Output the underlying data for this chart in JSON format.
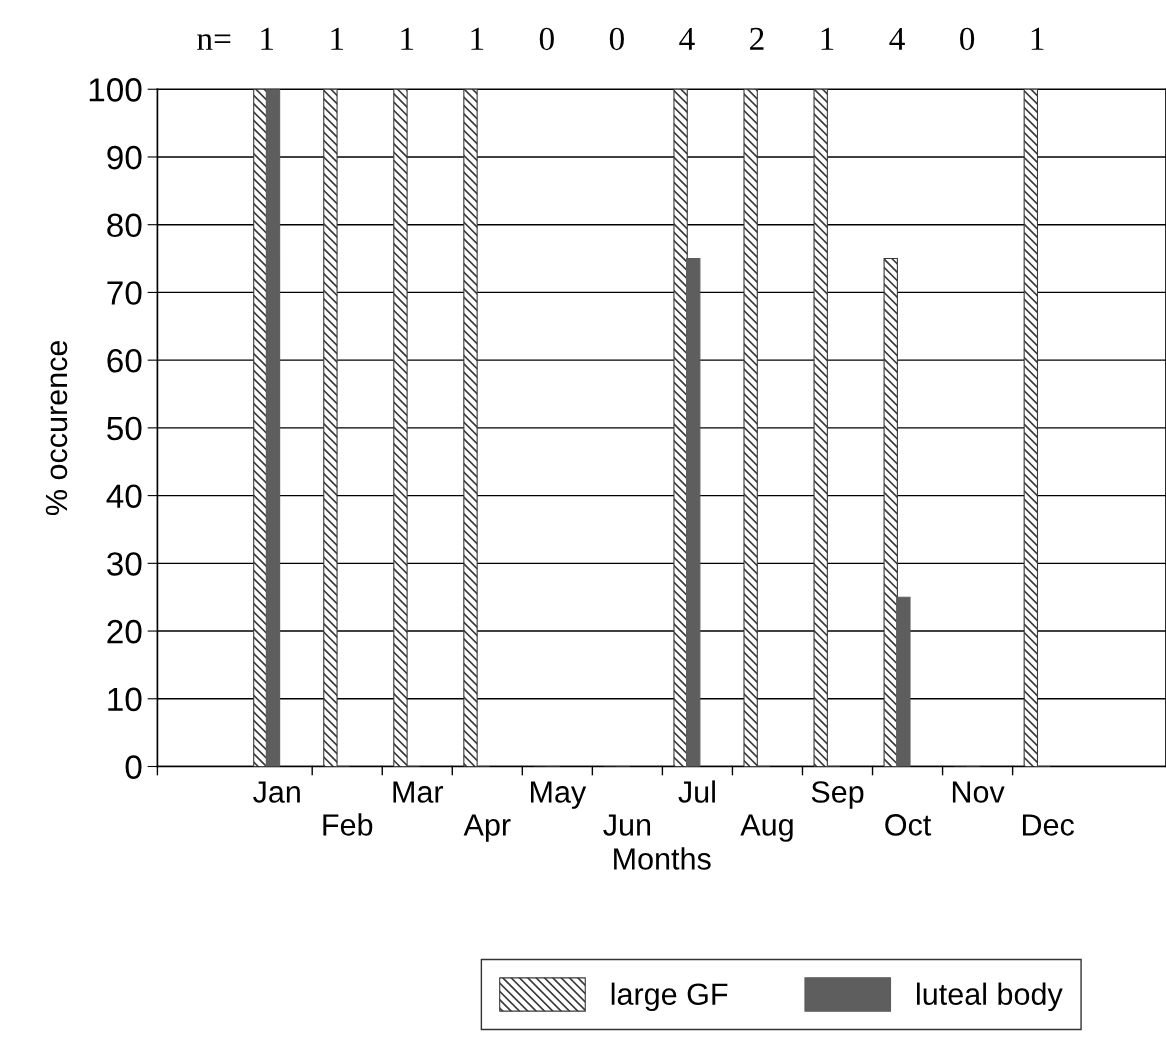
{
  "chart_data": {
    "type": "bar",
    "xlabel": "Months",
    "ylabel": "% occurence",
    "categories": [
      "Jan",
      "Feb",
      "Mar",
      "Apr",
      "May",
      "Jun",
      "Jul",
      "Aug",
      "Sep",
      "Oct",
      "Nov",
      "Dec"
    ],
    "series": [
      {
        "name": "large GF",
        "color": "#3a3a3a",
        "values": [
          100,
          100,
          100,
          100,
          0,
          0,
          100,
          100,
          100,
          75,
          0,
          100
        ]
      },
      {
        "name": "luteal body",
        "color": "#5e5e5e",
        "values": [
          100,
          0,
          0,
          0,
          0,
          0,
          75,
          0,
          0,
          25,
          0,
          0
        ]
      }
    ],
    "ylim": [
      0,
      100
    ],
    "yticks": [
      0,
      10,
      20,
      30,
      40,
      50,
      60,
      70,
      80,
      90,
      100
    ],
    "grid": "y",
    "legend": "bottom",
    "annotations": [
      "n=",
      "1",
      "1",
      "1",
      "1",
      "0",
      "0",
      "4",
      "2",
      "1",
      "4",
      "0",
      "1"
    ]
  }
}
